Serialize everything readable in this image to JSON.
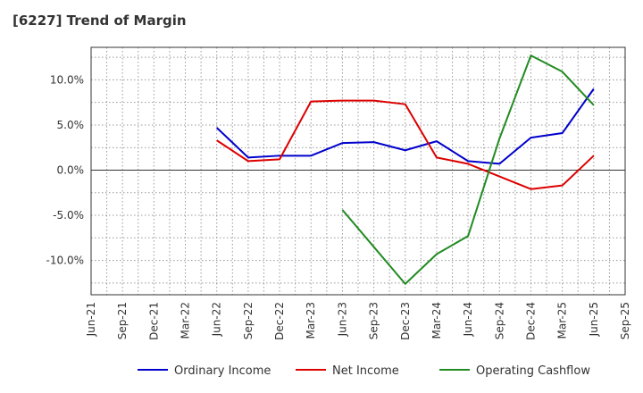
{
  "title": "[6227]  Trend of Margin",
  "chart_data": {
    "type": "line",
    "title": "[6227]  Trend of Margin",
    "xlabel": "",
    "ylabel": "",
    "x": [
      "Jun-21",
      "Sep-21",
      "Dec-21",
      "Mar-22",
      "Jun-22",
      "Sep-22",
      "Dec-22",
      "Mar-23",
      "Jun-23",
      "Sep-23",
      "Dec-23",
      "Mar-24",
      "Jun-24",
      "Sep-24",
      "Dec-24",
      "Mar-25",
      "Jun-25",
      "Sep-25"
    ],
    "ylim": [
      -13.8,
      13.6
    ],
    "yticks": [
      10,
      5,
      0,
      -5,
      -10
    ],
    "ytick_labels": [
      "10.0%",
      "5.0%",
      "0.0%",
      "-5.0%",
      "-10.0%"
    ],
    "grid": true,
    "legend_position": "bottom",
    "series": [
      {
        "name": "Ordinary Income",
        "color": "#0000cc",
        "values": [
          null,
          null,
          null,
          null,
          4.7,
          1.4,
          1.6,
          1.6,
          3.0,
          3.1,
          2.2,
          3.2,
          1.0,
          0.7,
          3.6,
          4.1,
          9.0,
          null
        ]
      },
      {
        "name": "Net Income",
        "color": "#dd0000",
        "values": [
          null,
          null,
          null,
          null,
          3.3,
          1.0,
          1.2,
          7.6,
          7.7,
          7.7,
          7.3,
          1.4,
          0.7,
          -0.7,
          -2.1,
          -1.7,
          1.6,
          null
        ]
      },
      {
        "name": "Operating Cashflow",
        "color": "#228b22",
        "values": [
          null,
          null,
          null,
          null,
          null,
          null,
          null,
          null,
          -4.4,
          -8.5,
          -12.6,
          -9.3,
          -7.3,
          3.5,
          12.7,
          10.9,
          7.2,
          null
        ]
      }
    ]
  }
}
